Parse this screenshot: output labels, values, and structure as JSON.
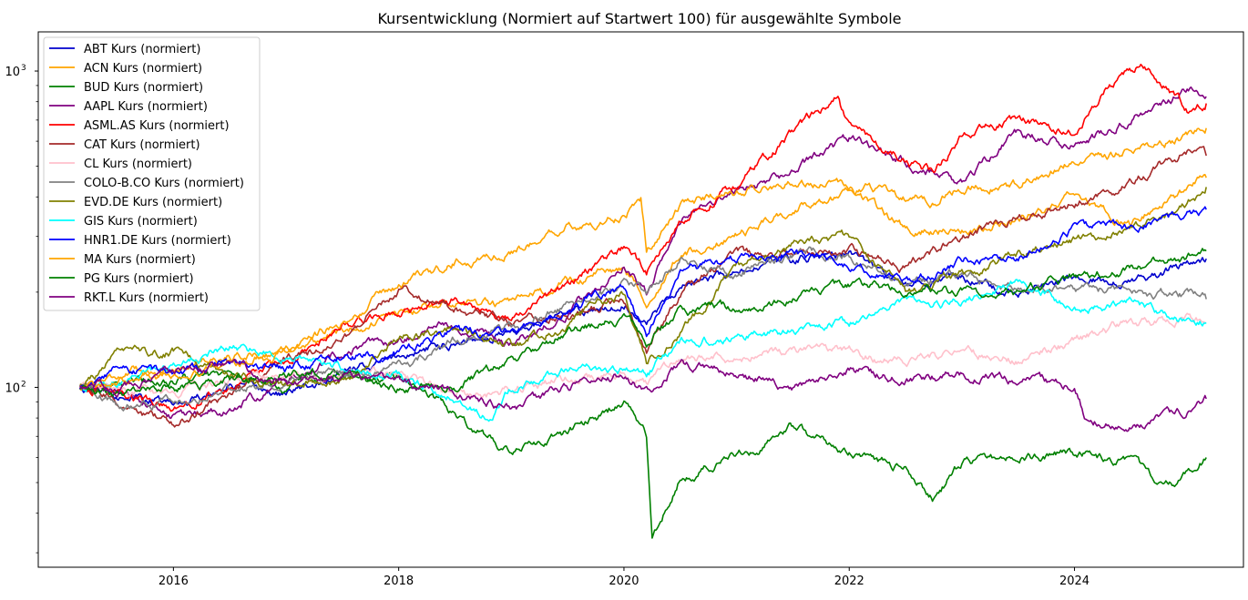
{
  "chart_data": {
    "type": "line",
    "title": "Kursentwicklung (Normiert auf Startwert 100) für ausgewählte Symbole",
    "xlabel": "",
    "ylabel": "",
    "yscale": "log",
    "xlim": [
      2014.8,
      2025.5
    ],
    "ylim": [
      27,
      1330
    ],
    "grid": false,
    "legend_position": "top-left",
    "x_ticks": [
      {
        "value": 2016,
        "label": "2016"
      },
      {
        "value": 2018,
        "label": "2018"
      },
      {
        "value": 2020,
        "label": "2020"
      },
      {
        "value": 2022,
        "label": "2022"
      },
      {
        "value": 2024,
        "label": "2024"
      }
    ],
    "y_ticks": [
      {
        "value": 100,
        "label": "10",
        "exp": "2"
      },
      {
        "value": 1000,
        "label": "10",
        "exp": "3"
      }
    ],
    "y_minor_ticks": [
      30,
      40,
      50,
      60,
      70,
      80,
      90,
      200,
      300,
      400,
      500,
      600,
      700,
      800,
      900
    ],
    "series": [
      {
        "name": "ABT Kurs (normiert)",
        "color": "#0000CD",
        "x": [
          2015.17,
          2015.5,
          2016.0,
          2016.5,
          2017.0,
          2017.5,
          2018.0,
          2018.5,
          2019.0,
          2019.5,
          2020.0,
          2020.2,
          2020.5,
          2021.0,
          2021.5,
          2022.0,
          2022.5,
          2023.0,
          2023.5,
          2024.0,
          2024.5,
          2025.0,
          2025.17
        ],
        "y": [
          100,
          96,
          88,
          102,
          95,
          110,
          125,
          140,
          150,
          170,
          185,
          165,
          210,
          230,
          255,
          265,
          210,
          220,
          200,
          225,
          215,
          245,
          255
        ]
      },
      {
        "name": "ACN Kurs (normiert)",
        "color": "#FFA500",
        "x": [
          2015.17,
          2015.5,
          2016.0,
          2016.5,
          2017.0,
          2017.5,
          2018.0,
          2018.5,
          2019.0,
          2019.5,
          2020.0,
          2020.2,
          2020.5,
          2021.0,
          2021.5,
          2022.0,
          2022.5,
          2023.0,
          2023.5,
          2024.0,
          2024.5,
          2025.0,
          2025.17
        ],
        "y": [
          100,
          110,
          115,
          125,
          130,
          150,
          170,
          190,
          180,
          215,
          240,
          190,
          260,
          300,
          370,
          410,
          320,
          310,
          340,
          400,
          330,
          420,
          460
        ]
      },
      {
        "name": "BUD Kurs (normiert)",
        "color": "#008000",
        "x": [
          2015.17,
          2015.5,
          2016.0,
          2016.5,
          2017.0,
          2017.5,
          2018.0,
          2018.3,
          2018.6,
          2019.0,
          2019.5,
          2020.0,
          2020.2,
          2020.25,
          2020.5,
          2021.0,
          2021.5,
          2022.0,
          2022.5,
          2022.75,
          2023.0,
          2023.5,
          2024.0,
          2024.5,
          2024.9,
          2025.17
        ],
        "y": [
          100,
          102,
          105,
          110,
          100,
          110,
          108,
          95,
          78,
          62,
          72,
          90,
          70,
          33,
          52,
          60,
          75,
          62,
          55,
          45,
          58,
          60,
          62,
          57,
          48,
          60
        ]
      },
      {
        "name": "AAPL Kurs (normiert)",
        "color": "#800080",
        "x": [
          2015.17,
          2015.5,
          2016.0,
          2016.5,
          2017.0,
          2017.5,
          2018.0,
          2018.5,
          2019.0,
          2019.5,
          2020.0,
          2020.2,
          2020.5,
          2021.0,
          2021.5,
          2022.0,
          2022.5,
          2023.0,
          2023.5,
          2024.0,
          2024.5,
          2025.0,
          2025.17
        ],
        "y": [
          100,
          98,
          80,
          85,
          105,
          130,
          140,
          160,
          135,
          170,
          250,
          200,
          330,
          420,
          480,
          610,
          520,
          440,
          640,
          580,
          700,
          870,
          830
        ]
      },
      {
        "name": "ASML.AS Kurs (normiert)",
        "color": "#FF0000",
        "x": [
          2015.17,
          2015.5,
          2016.0,
          2016.5,
          2017.0,
          2017.5,
          2018.0,
          2018.5,
          2019.0,
          2019.5,
          2020.0,
          2020.2,
          2020.5,
          2021.0,
          2021.5,
          2021.9,
          2022.0,
          2022.5,
          2022.75,
          2023.0,
          2023.5,
          2024.0,
          2024.3,
          2024.6,
          2025.0,
          2025.17
        ],
        "y": [
          100,
          95,
          85,
          100,
          120,
          155,
          175,
          190,
          165,
          210,
          280,
          230,
          330,
          440,
          640,
          820,
          650,
          520,
          480,
          620,
          700,
          650,
          900,
          1050,
          760,
          790
        ]
      },
      {
        "name": "CAT Kurs (normiert)",
        "color": "#A52A2A",
        "x": [
          2015.17,
          2015.5,
          2016.0,
          2016.5,
          2017.0,
          2017.5,
          2018.0,
          2018.5,
          2019.0,
          2019.5,
          2020.0,
          2020.2,
          2020.5,
          2021.0,
          2021.5,
          2022.0,
          2022.5,
          2023.0,
          2023.5,
          2024.0,
          2024.5,
          2025.0,
          2025.17
        ],
        "y": [
          100,
          90,
          75,
          95,
          120,
          140,
          205,
          180,
          160,
          170,
          185,
          130,
          200,
          260,
          270,
          270,
          240,
          300,
          340,
          380,
          440,
          560,
          540
        ]
      },
      {
        "name": "CL Kurs (normiert)",
        "color": "#FFC0CB",
        "x": [
          2015.17,
          2015.5,
          2016.0,
          2016.5,
          2017.0,
          2017.5,
          2018.0,
          2018.5,
          2019.0,
          2019.5,
          2020.0,
          2020.2,
          2020.5,
          2021.0,
          2021.5,
          2022.0,
          2022.5,
          2023.0,
          2023.5,
          2024.0,
          2024.5,
          2025.0,
          2025.17
        ],
        "y": [
          100,
          98,
          95,
          105,
          105,
          110,
          110,
          92,
          98,
          105,
          110,
          105,
          125,
          125,
          130,
          128,
          120,
          130,
          122,
          140,
          160,
          165,
          160
        ]
      },
      {
        "name": "COLO-B.CO Kurs (normiert)",
        "color": "#808080",
        "x": [
          2015.17,
          2015.5,
          2016.0,
          2016.5,
          2017.0,
          2017.5,
          2018.0,
          2018.5,
          2019.0,
          2019.5,
          2020.0,
          2020.2,
          2020.5,
          2021.0,
          2021.5,
          2022.0,
          2022.5,
          2023.0,
          2023.5,
          2024.0,
          2024.5,
          2025.0,
          2025.17
        ],
        "y": [
          100,
          88,
          90,
          100,
          105,
          110,
          115,
          140,
          155,
          180,
          210,
          200,
          250,
          230,
          260,
          265,
          210,
          230,
          200,
          205,
          200,
          195,
          190
        ]
      },
      {
        "name": "EVD.DE Kurs (normiert)",
        "color": "#808000",
        "x": [
          2015.17,
          2015.5,
          2016.0,
          2016.5,
          2017.0,
          2017.5,
          2018.0,
          2018.5,
          2019.0,
          2019.5,
          2020.0,
          2020.2,
          2020.5,
          2021.0,
          2021.5,
          2022.0,
          2022.5,
          2023.0,
          2023.5,
          2024.0,
          2024.5,
          2025.0,
          2025.17
        ],
        "y": [
          100,
          125,
          130,
          110,
          100,
          105,
          145,
          155,
          135,
          160,
          200,
          120,
          150,
          240,
          280,
          300,
          200,
          230,
          260,
          290,
          320,
          370,
          430
        ]
      },
      {
        "name": "GIS Kurs (normiert)",
        "color": "#00FFFF",
        "x": [
          2015.17,
          2015.5,
          2016.0,
          2016.5,
          2017.0,
          2017.5,
          2018.0,
          2018.5,
          2018.8,
          2019.0,
          2019.5,
          2020.0,
          2020.2,
          2020.5,
          2021.0,
          2021.5,
          2022.0,
          2022.5,
          2023.0,
          2023.5,
          2024.0,
          2024.5,
          2025.0,
          2025.17
        ],
        "y": [
          100,
          105,
          115,
          135,
          125,
          115,
          108,
          92,
          80,
          100,
          115,
          115,
          110,
          140,
          145,
          150,
          160,
          190,
          185,
          220,
          175,
          185,
          160,
          160
        ]
      },
      {
        "name": "HNR1.DE Kurs (normiert)",
        "color": "#0000FF",
        "x": [
          2015.17,
          2015.5,
          2016.0,
          2016.5,
          2017.0,
          2017.5,
          2018.0,
          2018.5,
          2019.0,
          2019.5,
          2020.0,
          2020.2,
          2020.5,
          2021.0,
          2021.5,
          2022.0,
          2022.5,
          2023.0,
          2023.5,
          2024.0,
          2024.5,
          2025.0,
          2025.17
        ],
        "y": [
          100,
          115,
          110,
          120,
          115,
          125,
          130,
          150,
          145,
          180,
          210,
          150,
          230,
          255,
          265,
          245,
          210,
          255,
          250,
          320,
          320,
          360,
          365
        ]
      },
      {
        "name": "MA Kurs (normiert)",
        "color": "#FFA500",
        "x": [
          2015.17,
          2015.5,
          2016.0,
          2016.5,
          2017.0,
          2017.5,
          2018.0,
          2018.5,
          2019.0,
          2019.5,
          2020.0,
          2020.15,
          2020.2,
          2020.5,
          2021.0,
          2021.5,
          2022.0,
          2022.5,
          2022.75,
          2023.0,
          2023.5,
          2024.0,
          2024.5,
          2025.0,
          2025.17
        ],
        "y": [
          100,
          105,
          110,
          120,
          130,
          160,
          210,
          250,
          270,
          320,
          350,
          390,
          270,
          380,
          420,
          450,
          440,
          400,
          390,
          430,
          440,
          520,
          560,
          620,
          660
        ]
      },
      {
        "name": "PG Kurs (normiert)",
        "color": "#008000",
        "x": [
          2015.17,
          2015.5,
          2016.0,
          2016.5,
          2017.0,
          2017.5,
          2018.0,
          2018.5,
          2019.0,
          2019.5,
          2020.0,
          2020.2,
          2020.5,
          2021.0,
          2021.5,
          2022.0,
          2022.5,
          2023.0,
          2023.5,
          2024.0,
          2024.5,
          2025.0,
          2025.17
        ],
        "y": [
          100,
          95,
          100,
          105,
          110,
          112,
          100,
          100,
          120,
          150,
          165,
          140,
          175,
          180,
          190,
          210,
          205,
          200,
          200,
          225,
          240,
          260,
          270
        ]
      },
      {
        "name": "RKT.L Kurs (normiert)",
        "color": "#800080",
        "x": [
          2015.17,
          2015.5,
          2016.0,
          2016.5,
          2017.0,
          2017.5,
          2018.0,
          2018.5,
          2019.0,
          2019.5,
          2020.0,
          2020.2,
          2020.5,
          2021.0,
          2021.5,
          2022.0,
          2022.5,
          2023.0,
          2023.5,
          2024.0,
          2024.1,
          2024.5,
          2025.0,
          2025.17
        ],
        "y": [
          100,
          100,
          110,
          120,
          105,
          110,
          105,
          95,
          85,
          100,
          110,
          95,
          120,
          110,
          100,
          115,
          105,
          110,
          105,
          100,
          80,
          75,
          85,
          92
        ]
      }
    ]
  }
}
